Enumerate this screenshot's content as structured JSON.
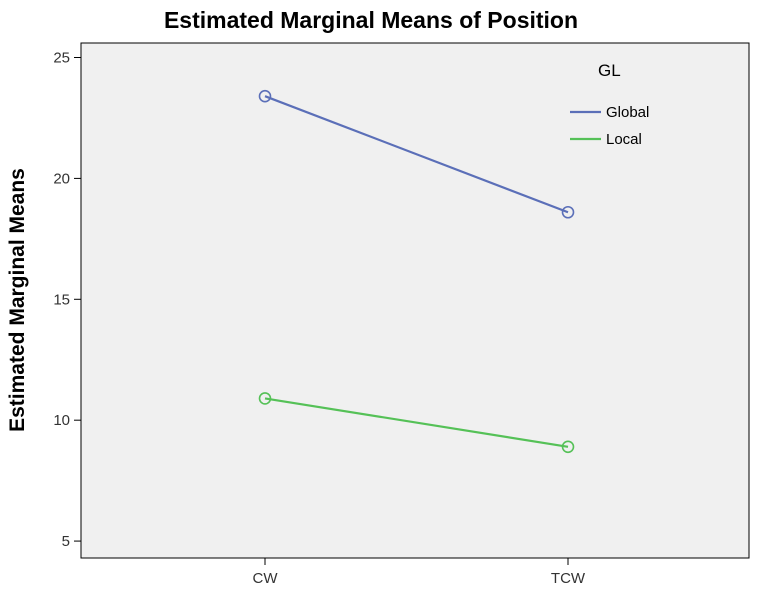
{
  "chart_data": {
    "type": "line",
    "title": "Estimated Marginal Means of Position",
    "xlabel": "",
    "ylabel": "Estimated Marginal Means",
    "categories": [
      "CW",
      "TCW"
    ],
    "yticks": [
      "5",
      "10",
      "15",
      "20",
      "25"
    ],
    "ylim": [
      4.3,
      25.6
    ],
    "grid": false,
    "legend": {
      "title": "GL",
      "position": "top-right"
    },
    "series": [
      {
        "name": "Global",
        "values": [
          23.4,
          18.6
        ],
        "color": "#5b6fb8"
      },
      {
        "name": "Local",
        "values": [
          10.9,
          8.9
        ],
        "color": "#55c157"
      }
    ],
    "background_color": "#f0f0f0"
  }
}
